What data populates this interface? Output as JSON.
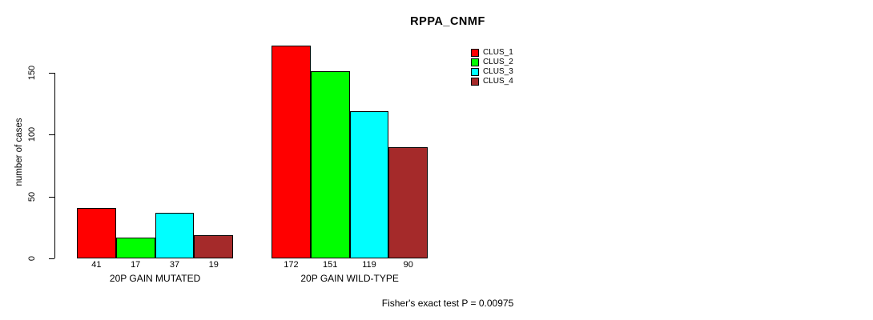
{
  "chart_data": {
    "type": "bar",
    "title": "RPPA_CNMF",
    "xlabel": "",
    "ylabel": "number of cases",
    "categories": [
      "20P GAIN MUTATED",
      "20P GAIN WILD-TYPE"
    ],
    "series": [
      {
        "name": "CLUS_1",
        "color": "#FF0000",
        "values": [
          41,
          172
        ]
      },
      {
        "name": "CLUS_2",
        "color": "#00FF00",
        "values": [
          17,
          151
        ]
      },
      {
        "name": "CLUS_3",
        "color": "#00FFFF",
        "values": [
          37,
          119
        ]
      },
      {
        "name": "CLUS_4",
        "color": "#A52A2A",
        "values": [
          19,
          90
        ]
      }
    ],
    "yticks": [
      0,
      50,
      100,
      150
    ],
    "ylim": [
      0,
      172
    ],
    "grid": false,
    "bar_value_labels": true,
    "legend_position": "top-right",
    "annotation": "Fisher's exact test P = 0.00975"
  }
}
